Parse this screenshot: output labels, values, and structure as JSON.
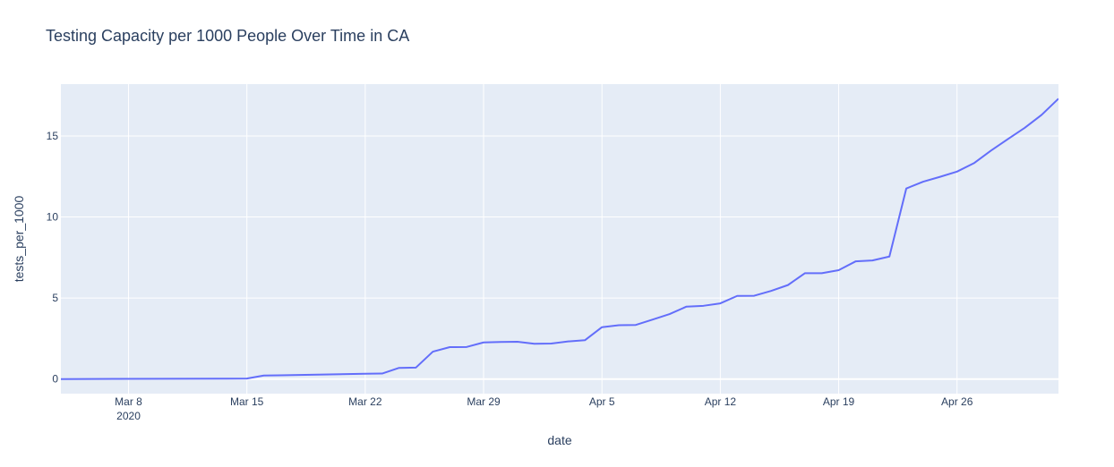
{
  "chart_data": {
    "type": "line",
    "title": "Testing Capacity per 1000 People Over Time in CA",
    "xlabel": "date",
    "ylabel": "tests_per_1000",
    "xlim": [
      "2020-03-04",
      "2020-05-02"
    ],
    "ylim": [
      -0.9,
      18.2
    ],
    "grid": true,
    "line_color": "#636efa",
    "plot_bg": "#e5ecf6",
    "x_ticks": [
      {
        "date": "2020-03-08",
        "label": "Mar 8",
        "sublabel": "2020"
      },
      {
        "date": "2020-03-15",
        "label": "Mar 15"
      },
      {
        "date": "2020-03-22",
        "label": "Mar 22"
      },
      {
        "date": "2020-03-29",
        "label": "Mar 29"
      },
      {
        "date": "2020-04-05",
        "label": "Apr 5"
      },
      {
        "date": "2020-04-12",
        "label": "Apr 12"
      },
      {
        "date": "2020-04-19",
        "label": "Apr 19"
      },
      {
        "date": "2020-04-26",
        "label": "Apr 26"
      }
    ],
    "y_ticks": [
      {
        "value": 0,
        "label": "0"
      },
      {
        "value": 5,
        "label": "5"
      },
      {
        "value": 10,
        "label": "10"
      },
      {
        "value": 15,
        "label": "15"
      }
    ],
    "x": [
      "2020-03-04",
      "2020-03-15",
      "2020-03-16",
      "2020-03-17",
      "2020-03-22",
      "2020-03-23",
      "2020-03-24",
      "2020-03-25",
      "2020-03-26",
      "2020-03-27",
      "2020-03-28",
      "2020-03-29",
      "2020-03-30",
      "2020-03-31",
      "2020-04-01",
      "2020-04-02",
      "2020-04-03",
      "2020-04-04",
      "2020-04-05",
      "2020-04-06",
      "2020-04-07",
      "2020-04-08",
      "2020-04-09",
      "2020-04-10",
      "2020-04-11",
      "2020-04-12",
      "2020-04-13",
      "2020-04-14",
      "2020-04-15",
      "2020-04-16",
      "2020-04-17",
      "2020-04-18",
      "2020-04-19",
      "2020-04-20",
      "2020-04-21",
      "2020-04-22",
      "2020-04-23",
      "2020-04-24",
      "2020-04-25",
      "2020-04-26",
      "2020-04-27",
      "2020-04-28",
      "2020-04-29",
      "2020-04-30",
      "2020-05-01",
      "2020-05-02"
    ],
    "series": [
      {
        "values": [
          0.0,
          0.03,
          0.22,
          0.23,
          0.33,
          0.34,
          0.69,
          0.71,
          1.69,
          1.97,
          1.98,
          2.26,
          2.29,
          2.3,
          2.18,
          2.19,
          2.32,
          2.4,
          3.2,
          3.32,
          3.34,
          3.67,
          4.01,
          4.47,
          4.52,
          4.67,
          5.13,
          5.14,
          5.44,
          5.8,
          6.53,
          6.53,
          6.72,
          7.26,
          7.32,
          7.56,
          11.76,
          12.18,
          12.48,
          12.8,
          13.32,
          14.09,
          14.8,
          15.5,
          16.3,
          17.3
        ]
      }
    ]
  }
}
